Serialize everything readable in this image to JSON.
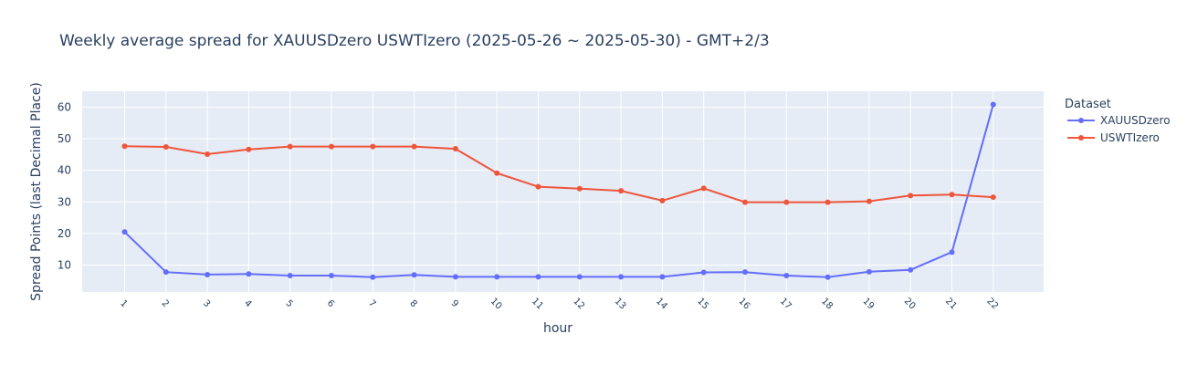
{
  "chart_data": {
    "type": "line",
    "title": "Weekly average spread for  XAUUSDzero USWTIzero (2025-05-26 ~ 2025-05-30) - GMT+2/3",
    "xlabel": "hour",
    "ylabel": "Spread Points (last Decimal Place)",
    "x": [
      1,
      2,
      3,
      4,
      5,
      6,
      7,
      8,
      9,
      10,
      11,
      12,
      13,
      14,
      15,
      16,
      17,
      18,
      19,
      20,
      21,
      22
    ],
    "yticks": [
      10,
      20,
      30,
      40,
      50,
      60
    ],
    "ylim": [
      1.5,
      65
    ],
    "grid": true,
    "legend_title": "Dataset",
    "legend_placement": "top-right",
    "series": [
      {
        "name": "XAUUSDzero",
        "color": "#636efa",
        "values": [
          20.5,
          7.8,
          7.0,
          7.2,
          6.7,
          6.7,
          6.2,
          6.9,
          6.3,
          6.3,
          6.3,
          6.3,
          6.3,
          6.3,
          7.7,
          7.8,
          6.7,
          6.2,
          7.9,
          8.5,
          14.1,
          60.8
        ]
      },
      {
        "name": "USWTIzero",
        "color": "#ef553b",
        "values": [
          47.6,
          47.4,
          45.1,
          46.6,
          47.5,
          47.5,
          47.5,
          47.5,
          46.8,
          39.1,
          34.8,
          34.2,
          33.5,
          30.4,
          34.3,
          29.9,
          29.9,
          29.9,
          30.2,
          32.0,
          32.3,
          31.5
        ]
      }
    ]
  }
}
